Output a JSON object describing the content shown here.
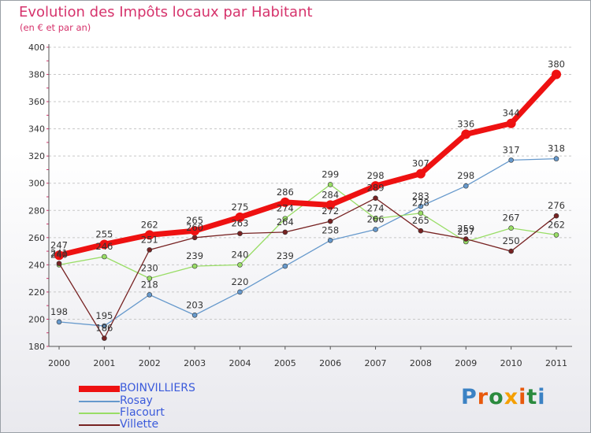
{
  "header": {
    "title": "Evolution des Impôts locaux par Habitant",
    "subtitle": "(en € et par an)"
  },
  "logo": {
    "text": "Proxiti",
    "letters": [
      "P",
      "r",
      "o",
      "x",
      "i",
      "t",
      "i"
    ],
    "colors": [
      "#3b82c4",
      "#e8590c",
      "#2b8a3e",
      "#f59f00",
      "#e8590c",
      "#2b8a3e",
      "#3b82c4"
    ]
  },
  "chart_data": {
    "type": "line",
    "title": "Evolution des Impôts locaux par Habitant",
    "subtitle": "(en € et par an)",
    "xlabel": "",
    "ylabel": "",
    "x": [
      "2000",
      "2001",
      "2002",
      "2003",
      "2004",
      "2005",
      "2006",
      "2007",
      "2008",
      "2009",
      "2010",
      "2011"
    ],
    "ylim": [
      180,
      400
    ],
    "yticks": [
      180,
      200,
      220,
      240,
      260,
      280,
      300,
      320,
      340,
      360,
      380,
      400
    ],
    "grid": "horizontal dashed",
    "legend_position": "bottom-left",
    "series": [
      {
        "name": "BOINVILLIERS",
        "color": "#ee1111",
        "width": 7,
        "marker": 6,
        "values": [
          247,
          255,
          262,
          265,
          275,
          286,
          284,
          298,
          307,
          336,
          344,
          380
        ],
        "labels": [
          "247",
          "255",
          "262",
          "265",
          "275",
          "286",
          "284",
          "298",
          "307",
          "336",
          "344",
          "380"
        ]
      },
      {
        "name": "Rosay",
        "color": "#6699cc",
        "width": 1.3,
        "marker": 3,
        "values": [
          198,
          195,
          218,
          203,
          220,
          239,
          258,
          266,
          283,
          298,
          317,
          318
        ],
        "labels": [
          "198",
          "195",
          "218",
          "203",
          "220",
          "239",
          "258",
          "266",
          "283",
          "298",
          "317",
          "318"
        ]
      },
      {
        "name": "Flacourt",
        "color": "#99dd66",
        "width": 1.3,
        "marker": 3,
        "values": [
          240,
          246,
          230,
          239,
          240,
          274,
          299,
          274,
          278,
          257,
          267,
          262
        ],
        "labels": [
          "240",
          "246",
          "230",
          "239",
          "240",
          "274",
          "299",
          "274",
          "278",
          "257",
          "267",
          "262"
        ]
      },
      {
        "name": "Villette",
        "color": "#772222",
        "width": 1.3,
        "marker": 3,
        "values": [
          241,
          186,
          251,
          260,
          263,
          264,
          272,
          289,
          265,
          259,
          250,
          276
        ],
        "labels": [
          "241",
          "186",
          "251",
          "260",
          "263",
          "264",
          "272",
          "289",
          "265",
          "259",
          "250",
          "276"
        ]
      }
    ]
  }
}
